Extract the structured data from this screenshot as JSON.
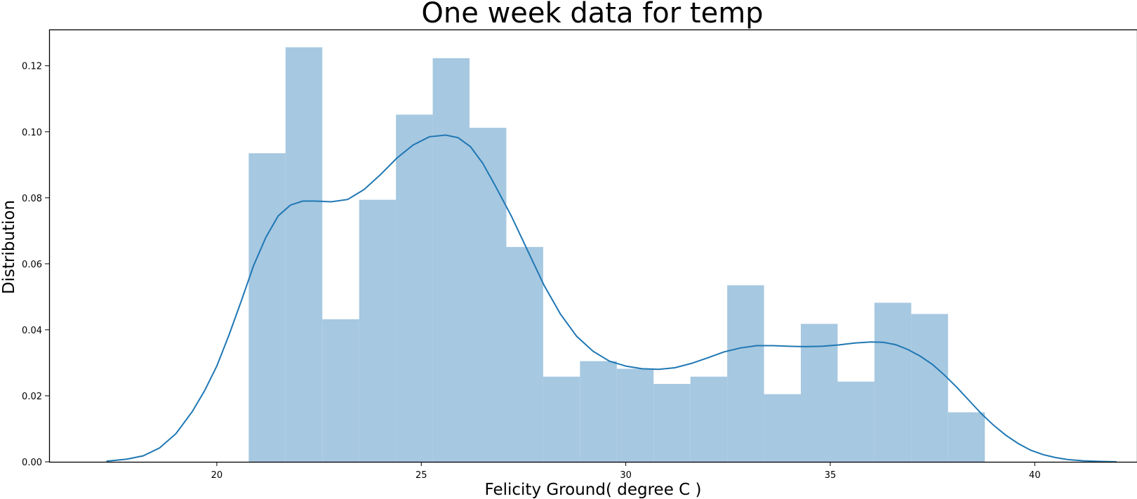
{
  "chart_data": {
    "type": "histogram",
    "title": "One week data for temp",
    "xlabel": "Felicity Ground( degree C )",
    "ylabel": "Distribution",
    "xlim": [
      15.9,
      42.5
    ],
    "ylim": [
      0.0,
      0.131
    ],
    "x_ticks": [
      20,
      25,
      30,
      35,
      40
    ],
    "x_tick_labels": [
      "20",
      "25",
      "30",
      "35",
      "40"
    ],
    "y_ticks": [
      0.0,
      0.02,
      0.04,
      0.06,
      0.08,
      0.1,
      0.12
    ],
    "y_tick_labels": [
      "0.00",
      "0.02",
      "0.04",
      "0.06",
      "0.08",
      "0.10",
      "0.12"
    ],
    "grid": false,
    "bar_color": "#a6c8e1",
    "line_color": "#1f77b4",
    "bins": [
      {
        "x0": 20.78,
        "x1": 21.68,
        "value": 0.0935
      },
      {
        "x0": 21.68,
        "x1": 22.58,
        "value": 0.1256
      },
      {
        "x0": 22.58,
        "x1": 23.48,
        "value": 0.0432
      },
      {
        "x0": 23.48,
        "x1": 24.38,
        "value": 0.0794
      },
      {
        "x0": 24.38,
        "x1": 25.28,
        "value": 0.1052
      },
      {
        "x0": 25.28,
        "x1": 26.18,
        "value": 0.1223
      },
      {
        "x0": 26.18,
        "x1": 27.08,
        "value": 0.1012
      },
      {
        "x0": 27.08,
        "x1": 27.98,
        "value": 0.0651
      },
      {
        "x0": 27.98,
        "x1": 28.88,
        "value": 0.0258
      },
      {
        "x0": 28.88,
        "x1": 29.78,
        "value": 0.0305
      },
      {
        "x0": 29.78,
        "x1": 30.68,
        "value": 0.0282
      },
      {
        "x0": 30.68,
        "x1": 31.58,
        "value": 0.0236
      },
      {
        "x0": 31.58,
        "x1": 32.48,
        "value": 0.0258
      },
      {
        "x0": 32.48,
        "x1": 33.38,
        "value": 0.0535
      },
      {
        "x0": 33.38,
        "x1": 34.28,
        "value": 0.0205
      },
      {
        "x0": 34.28,
        "x1": 35.18,
        "value": 0.0418
      },
      {
        "x0": 35.18,
        "x1": 36.08,
        "value": 0.0243
      },
      {
        "x0": 36.08,
        "x1": 36.98,
        "value": 0.0482
      },
      {
        "x0": 36.98,
        "x1": 37.88,
        "value": 0.0448
      },
      {
        "x0": 37.88,
        "x1": 38.78,
        "value": 0.015
      }
    ],
    "kde": {
      "x": [
        17.3,
        17.8,
        18.2,
        18.6,
        19.0,
        19.4,
        19.7,
        20.0,
        20.3,
        20.6,
        20.9,
        21.2,
        21.5,
        21.8,
        22.1,
        22.4,
        22.8,
        23.2,
        23.6,
        24.0,
        24.4,
        24.8,
        25.2,
        25.6,
        25.9,
        26.2,
        26.5,
        26.8,
        27.2,
        27.6,
        28.0,
        28.4,
        28.8,
        29.2,
        29.6,
        30.0,
        30.4,
        30.8,
        31.2,
        31.6,
        32.0,
        32.4,
        32.8,
        33.2,
        33.6,
        34.0,
        34.4,
        34.8,
        35.2,
        35.6,
        36.0,
        36.3,
        36.6,
        36.9,
        37.2,
        37.5,
        37.8,
        38.1,
        38.4,
        38.7,
        39.0,
        39.3,
        39.6,
        39.9,
        40.2,
        40.5,
        40.8,
        41.2,
        41.6,
        42.0
      ],
      "y": [
        0.0002,
        0.0008,
        0.0018,
        0.0042,
        0.0085,
        0.0152,
        0.0215,
        0.029,
        0.0385,
        0.0488,
        0.0595,
        0.068,
        0.0745,
        0.0778,
        0.079,
        0.079,
        0.0788,
        0.0795,
        0.0825,
        0.087,
        0.092,
        0.096,
        0.0985,
        0.099,
        0.0982,
        0.0955,
        0.0905,
        0.0838,
        0.0745,
        0.064,
        0.0535,
        0.0448,
        0.038,
        0.0335,
        0.0305,
        0.029,
        0.0282,
        0.028,
        0.0285,
        0.0298,
        0.0315,
        0.0333,
        0.0345,
        0.0352,
        0.0352,
        0.035,
        0.0349,
        0.035,
        0.0354,
        0.036,
        0.0363,
        0.0362,
        0.0355,
        0.034,
        0.032,
        0.0295,
        0.0262,
        0.0225,
        0.0185,
        0.0145,
        0.011,
        0.008,
        0.0055,
        0.0035,
        0.0022,
        0.0013,
        0.0007,
        0.0003,
        0.0001,
        0.0
      ]
    }
  }
}
